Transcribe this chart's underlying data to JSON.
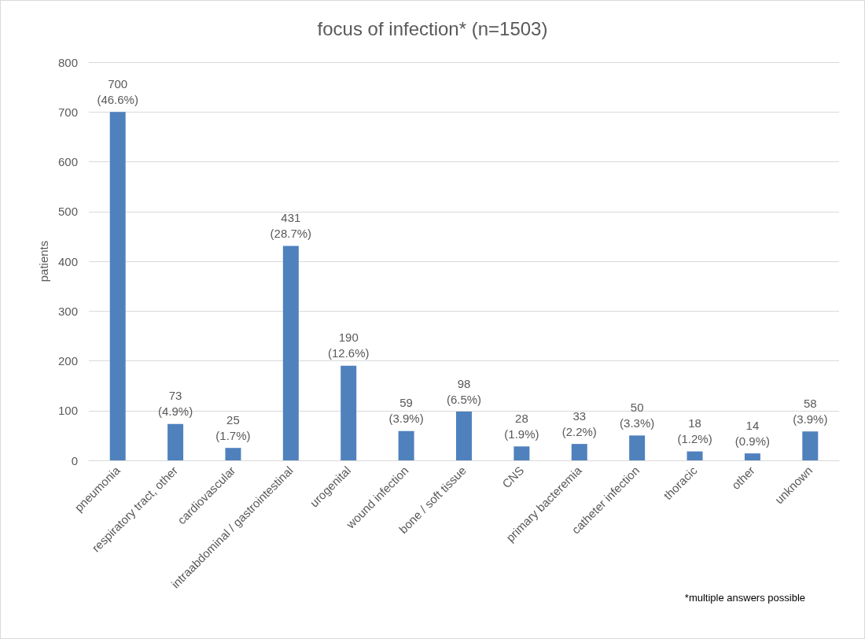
{
  "chart_data": {
    "type": "bar",
    "title": "focus of infection* (n=1503)",
    "ylabel": "patients",
    "categories": [
      "pneumonia",
      "respiratory tract, other",
      "cardiovascular",
      "intraabdominal / gastrointestinal",
      "urogenital",
      "wound infection",
      "bone / soft tissue",
      "CNS",
      "primary bacteremia",
      "catheter infection",
      "thoracic",
      "other",
      "unknown"
    ],
    "values": [
      700,
      73,
      25,
      431,
      190,
      59,
      98,
      28,
      33,
      50,
      18,
      14,
      58
    ],
    "color": "#4f81bd",
    "value_labels": [
      "700\n(46.6%)",
      "73\n(4.9%)",
      "25\n(1.7%)",
      "431\n(28.7%)",
      "190\n(12.6%)",
      "59\n(3.9%)",
      "98\n(6.5%)",
      "28\n(1.9%)",
      "33\n(2.2%)",
      "50\n(3.3%)",
      "18\n(1.2%)",
      "14\n(0.9%)",
      "58\n(3.9%)"
    ],
    "ylim": [
      0,
      800
    ],
    "yticks": [
      0,
      100,
      200,
      300,
      400,
      500,
      600,
      700,
      800
    ],
    "grid": "y",
    "annotations": [
      "*multiple answers possible"
    ]
  }
}
